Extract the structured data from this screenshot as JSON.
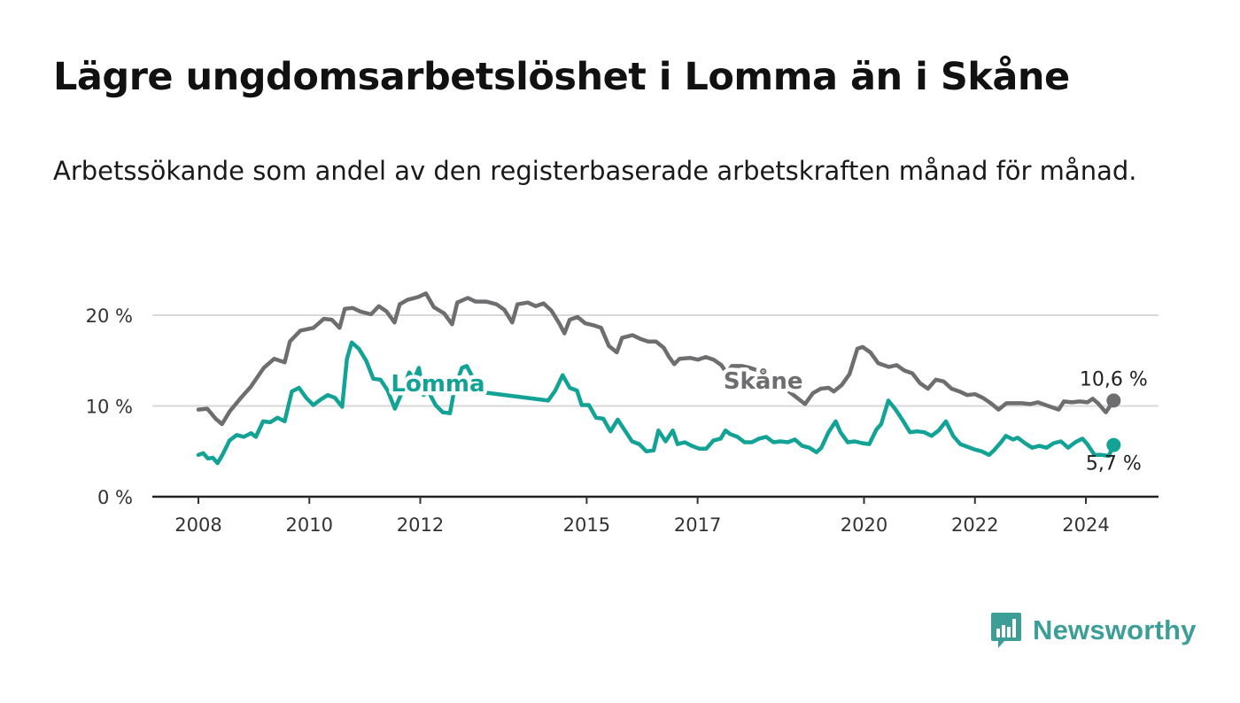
{
  "header": {
    "title": "Lägre ungdomsarbetslöshet i Lomma än i Skåne",
    "subtitle": "Arbetssökande som andel av den registerbaserade arbetskraften månad för månad."
  },
  "brand": {
    "name": "Newsworthy",
    "color": "#3d9e98",
    "icon": "bar-chart-speech-bubble-icon"
  },
  "chart_data": {
    "type": "line",
    "title": "Lägre ungdomsarbetslöshet i Lomma än i Skåne",
    "subtitle": "Arbetssökande som andel av den registerbaserade arbetskraften månad för månad.",
    "xlabel": "",
    "ylabel": "",
    "xlim": [
      2007.5,
      2025.3
    ],
    "ylim": [
      0,
      25
    ],
    "grid": true,
    "x_ticks": [
      {
        "value": 2008,
        "label": "2008"
      },
      {
        "value": 2010,
        "label": "2010"
      },
      {
        "value": 2012,
        "label": "2012"
      },
      {
        "value": 2015,
        "label": "2015"
      },
      {
        "value": 2017,
        "label": "2017"
      },
      {
        "value": 2020,
        "label": "2020"
      },
      {
        "value": 2022,
        "label": "2022"
      },
      {
        "value": 2024,
        "label": "2024"
      }
    ],
    "y_ticks": [
      {
        "value": 0,
        "label": "0 %"
      },
      {
        "value": 10,
        "label": "10 %"
      },
      {
        "value": 20,
        "label": "20 %"
      }
    ],
    "series": [
      {
        "name": "Skåne",
        "color": "#6e6e70",
        "label_at": [
          2018.8,
          11.9
        ],
        "end_label": "10,6 %",
        "points": [
          [
            2008.0,
            9.6
          ],
          [
            2008.17,
            9.7
          ],
          [
            2008.33,
            8.6
          ],
          [
            2008.45,
            8.0
          ],
          [
            2008.6,
            9.4
          ],
          [
            2008.8,
            10.8
          ],
          [
            2009.0,
            12.1
          ],
          [
            2009.25,
            14.2
          ],
          [
            2009.45,
            15.2
          ],
          [
            2009.65,
            14.8
          ],
          [
            2009.75,
            17.1
          ],
          [
            2009.95,
            18.3
          ],
          [
            2010.2,
            18.6
          ],
          [
            2010.4,
            19.6
          ],
          [
            2010.55,
            19.5
          ],
          [
            2010.7,
            18.6
          ],
          [
            2010.8,
            20.7
          ],
          [
            2010.95,
            20.8
          ],
          [
            2011.1,
            20.4
          ],
          [
            2011.3,
            20.1
          ],
          [
            2011.45,
            21.0
          ],
          [
            2011.6,
            20.4
          ],
          [
            2011.75,
            19.2
          ],
          [
            2011.85,
            21.2
          ],
          [
            2012.0,
            21.7
          ],
          [
            2012.2,
            22.0
          ],
          [
            2012.35,
            22.4
          ],
          [
            2012.5,
            20.9
          ],
          [
            2012.7,
            20.2
          ],
          [
            2012.85,
            19.0
          ],
          [
            2012.95,
            21.4
          ],
          [
            2013.15,
            21.9
          ],
          [
            2013.3,
            21.5
          ],
          [
            2013.5,
            21.5
          ],
          [
            2013.7,
            21.2
          ],
          [
            2013.85,
            20.6
          ],
          [
            2014.0,
            19.2
          ],
          [
            2014.1,
            21.2
          ],
          [
            2014.3,
            21.4
          ],
          [
            2014.45,
            21.0
          ],
          [
            2014.6,
            21.3
          ],
          [
            2014.75,
            20.5
          ],
          [
            2014.9,
            19.1
          ],
          [
            2015.0,
            18.0
          ],
          [
            2015.1,
            19.5
          ],
          [
            2015.25,
            19.8
          ],
          [
            2015.4,
            19.1
          ],
          [
            2015.55,
            18.9
          ],
          [
            2015.7,
            18.6
          ],
          [
            2015.85,
            16.6
          ],
          [
            2016.0,
            15.9
          ],
          [
            2016.1,
            17.5
          ],
          [
            2016.3,
            17.8
          ],
          [
            2016.45,
            17.4
          ],
          [
            2016.6,
            17.1
          ],
          [
            2016.75,
            17.1
          ],
          [
            2016.9,
            16.4
          ],
          [
            2017.0,
            15.4
          ],
          [
            2017.1,
            14.6
          ],
          [
            2017.2,
            15.2
          ],
          [
            2017.4,
            15.3
          ],
          [
            2017.55,
            15.1
          ],
          [
            2017.7,
            15.4
          ],
          [
            2017.85,
            15.1
          ],
          [
            2018.0,
            14.5
          ],
          [
            2018.1,
            13.6
          ],
          [
            2018.2,
            14.4
          ],
          [
            2018.4,
            14.4
          ],
          [
            2018.55,
            14.2
          ],
          [
            2018.7,
            13.9
          ],
          [
            2018.85,
            13.6
          ]
        ],
        "points_after_label": [
          [
            2019.6,
            10.2
          ],
          [
            2019.75,
            11.4
          ],
          [
            2019.9,
            11.9
          ],
          [
            2020.05,
            12.0
          ],
          [
            2020.15,
            11.6
          ],
          [
            2020.3,
            12.3
          ],
          [
            2020.45,
            13.5
          ],
          [
            2020.6,
            16.3
          ],
          [
            2020.7,
            16.5
          ],
          [
            2020.85,
            15.9
          ],
          [
            2021.0,
            14.7
          ],
          [
            2021.2,
            14.3
          ],
          [
            2021.35,
            14.5
          ],
          [
            2021.5,
            13.9
          ],
          [
            2021.65,
            13.6
          ],
          [
            2021.8,
            12.5
          ],
          [
            2021.95,
            11.9
          ],
          [
            2022.1,
            12.9
          ],
          [
            2022.25,
            12.7
          ],
          [
            2022.4,
            11.9
          ],
          [
            2022.55,
            11.6
          ],
          [
            2022.7,
            11.2
          ],
          [
            2022.85,
            11.3
          ],
          [
            2023.0,
            10.9
          ],
          [
            2023.15,
            10.3
          ],
          [
            2023.3,
            9.6
          ],
          [
            2023.45,
            10.3
          ],
          [
            2023.6,
            10.3
          ],
          [
            2023.75,
            10.3
          ],
          [
            2023.9,
            10.2
          ],
          [
            2024.05,
            10.4
          ],
          [
            2024.2,
            10.1
          ],
          [
            2024.35,
            9.8
          ],
          [
            2024.45,
            9.6
          ],
          [
            2024.55,
            10.5
          ],
          [
            2024.7,
            10.4
          ],
          [
            2024.85,
            10.5
          ],
          [
            2025.0,
            10.4
          ],
          [
            2025.1,
            10.8
          ],
          [
            2025.2,
            10.3
          ],
          [
            2025.35,
            9.3
          ],
          [
            2025.5,
            10.6
          ]
        ]
      },
      {
        "name": "Lomma",
        "color": "#13a396",
        "label_at": [
          2013.0,
          11.6
        ],
        "end_label": "5,7 %",
        "points": [
          [
            2008.0,
            4.6
          ],
          [
            2008.1,
            4.8
          ],
          [
            2008.2,
            4.2
          ],
          [
            2008.3,
            4.3
          ],
          [
            2008.4,
            3.7
          ],
          [
            2008.5,
            4.6
          ],
          [
            2008.65,
            6.2
          ],
          [
            2008.8,
            6.8
          ],
          [
            2008.95,
            6.6
          ],
          [
            2009.1,
            7.0
          ],
          [
            2009.2,
            6.6
          ],
          [
            2009.35,
            8.3
          ],
          [
            2009.5,
            8.2
          ],
          [
            2009.65,
            8.7
          ],
          [
            2009.8,
            8.3
          ],
          [
            2009.95,
            11.6
          ],
          [
            2010.1,
            12.0
          ],
          [
            2010.25,
            10.9
          ],
          [
            2010.4,
            10.1
          ],
          [
            2010.55,
            10.7
          ],
          [
            2010.7,
            11.2
          ],
          [
            2010.85,
            10.9
          ],
          [
            2011.0,
            9.9
          ],
          [
            2011.1,
            15.2
          ],
          [
            2011.2,
            17.0
          ],
          [
            2011.35,
            16.3
          ],
          [
            2011.5,
            15.0
          ],
          [
            2011.65,
            13.0
          ],
          [
            2011.8,
            12.9
          ],
          [
            2011.95,
            11.7
          ],
          [
            2012.1,
            9.7
          ],
          [
            2012.25,
            11.5
          ],
          [
            2012.4,
            13.7
          ],
          [
            2012.5,
            12.9
          ],
          [
            2012.6,
            14.2
          ],
          [
            2012.7,
            11.2
          ],
          [
            2012.8,
            11.6
          ],
          [
            2012.95,
            10.1
          ],
          [
            2013.1,
            9.3
          ],
          [
            2013.25,
            9.2
          ],
          [
            2013.35,
            12.0
          ],
          [
            2013.5,
            14.2
          ],
          [
            2013.6,
            14.4
          ],
          [
            2013.7,
            13.4
          ],
          [
            2013.8,
            11.6
          ]
        ],
        "points_after_label": [
          [
            2015.3,
            10.6
          ],
          [
            2015.45,
            11.7
          ],
          [
            2015.6,
            13.4
          ],
          [
            2015.75,
            12.0
          ],
          [
            2015.9,
            11.7
          ],
          [
            2016.0,
            10.1
          ],
          [
            2016.15,
            10.1
          ],
          [
            2016.3,
            8.7
          ],
          [
            2016.45,
            8.6
          ],
          [
            2016.6,
            7.2
          ],
          [
            2016.75,
            8.5
          ],
          [
            2016.9,
            7.3
          ],
          [
            2017.05,
            6.1
          ],
          [
            2017.2,
            5.8
          ],
          [
            2017.35,
            5.0
          ],
          [
            2017.5,
            5.1
          ],
          [
            2017.6,
            7.3
          ],
          [
            2017.75,
            6.1
          ],
          [
            2017.9,
            7.3
          ],
          [
            2018.0,
            5.8
          ],
          [
            2018.15,
            6.0
          ],
          [
            2018.3,
            5.6
          ],
          [
            2018.45,
            5.3
          ],
          [
            2018.6,
            5.3
          ],
          [
            2018.75,
            6.2
          ],
          [
            2018.9,
            6.4
          ],
          [
            2019.0,
            7.3
          ],
          [
            2019.1,
            6.9
          ],
          [
            2019.25,
            6.6
          ],
          [
            2019.4,
            6.0
          ],
          [
            2019.55,
            6.0
          ],
          [
            2019.7,
            6.4
          ],
          [
            2019.85,
            6.6
          ],
          [
            2020.0,
            6.0
          ],
          [
            2020.15,
            6.1
          ],
          [
            2020.3,
            6.0
          ],
          [
            2020.45,
            6.3
          ],
          [
            2020.6,
            5.6
          ],
          [
            2020.75,
            5.4
          ],
          [
            2020.9,
            4.9
          ],
          [
            2021.0,
            5.4
          ],
          [
            2021.15,
            7.1
          ],
          [
            2021.3,
            8.3
          ],
          [
            2021.4,
            7.1
          ],
          [
            2021.55,
            6.0
          ],
          [
            2021.7,
            6.1
          ],
          [
            2021.85,
            5.9
          ],
          [
            2022.0,
            5.8
          ],
          [
            2022.15,
            7.4
          ],
          [
            2022.25,
            8.0
          ],
          [
            2022.4,
            10.6
          ],
          [
            2022.55,
            9.6
          ],
          [
            2022.7,
            8.4
          ],
          [
            2022.85,
            7.1
          ],
          [
            2023.0,
            7.2
          ],
          [
            2023.15,
            7.1
          ],
          [
            2023.3,
            6.7
          ],
          [
            2023.45,
            7.3
          ],
          [
            2023.6,
            8.3
          ],
          [
            2023.75,
            6.7
          ],
          [
            2023.9,
            5.8
          ],
          [
            2024.05,
            5.5
          ],
          [
            2024.2,
            5.2
          ],
          [
            2024.35,
            5.0
          ],
          [
            2024.5,
            4.6
          ],
          [
            2024.6,
            5.1
          ],
          [
            2024.75,
            6.0
          ],
          [
            2024.85,
            6.7
          ],
          [
            2025.0,
            6.3
          ],
          [
            2025.1,
            6.5
          ],
          [
            2025.25,
            5.9
          ],
          [
            2025.4,
            5.4
          ],
          [
            2025.55,
            5.6
          ],
          [
            2025.7,
            5.4
          ],
          [
            2025.85,
            5.9
          ],
          [
            2026.0,
            6.1
          ],
          [
            2026.15,
            5.4
          ],
          [
            2026.3,
            6.0
          ],
          [
            2026.45,
            6.4
          ],
          [
            2026.55,
            5.8
          ],
          [
            2026.7,
            4.6
          ],
          [
            2026.85,
            4.6
          ],
          [
            2027.0,
            4.5
          ],
          [
            2027.1,
            5.7
          ]
        ]
      }
    ]
  }
}
